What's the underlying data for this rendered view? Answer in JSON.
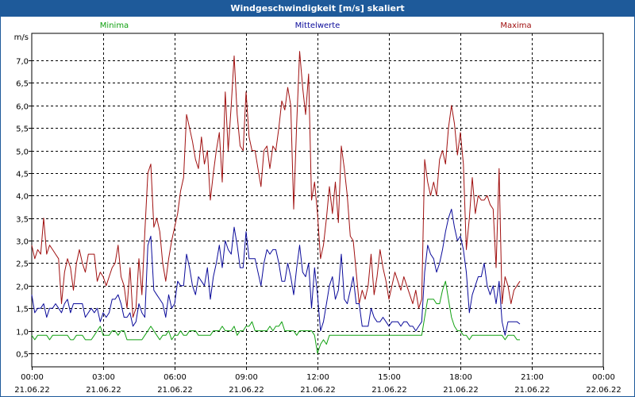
{
  "window": {
    "title": "Windgeschwindigkeit [m/s] skaliert"
  },
  "chart_data": {
    "type": "line",
    "title": "Windgeschwindigkeit [m/s] skaliert",
    "ylabel": "m/s",
    "xlabel": "",
    "ylim": [
      0.2,
      7.6
    ],
    "xlim": [
      0,
      24
    ],
    "grid": true,
    "yticks": [
      "0,5",
      "1,0",
      "1,5",
      "2,0",
      "2,5",
      "3,0",
      "3,5",
      "4,0",
      "4,5",
      "5,0",
      "5,5",
      "6,0",
      "6,5",
      "7,0"
    ],
    "ytick_values": [
      0.5,
      1.0,
      1.5,
      2.0,
      2.5,
      3.0,
      3.5,
      4.0,
      4.5,
      5.0,
      5.5,
      6.0,
      6.5,
      7.0
    ],
    "xticks": [
      {
        "time": "00:00",
        "date": "21.06.22"
      },
      {
        "time": "03:00",
        "date": "21.06.22"
      },
      {
        "time": "06:00",
        "date": "21.06.22"
      },
      {
        "time": "09:00",
        "date": "21.06.22"
      },
      {
        "time": "12:00",
        "date": "21.06.22"
      },
      {
        "time": "15:00",
        "date": "21.06.22"
      },
      {
        "time": "18:00",
        "date": "21.06.22"
      },
      {
        "time": "21:00",
        "date": "21.06.22"
      },
      {
        "time": "00:00",
        "date": "22.06.22"
      }
    ],
    "legend": [
      "Minima",
      "Mittelwerte",
      "Maxima"
    ],
    "x_hours_step": 0.125,
    "series": [
      {
        "name": "Maxima",
        "color": "#a01010",
        "values": [
          2.9,
          2.6,
          2.8,
          2.7,
          3.5,
          2.7,
          2.9,
          2.8,
          2.7,
          2.6,
          1.6,
          2.3,
          2.6,
          2.4,
          1.9,
          2.5,
          2.8,
          2.5,
          2.3,
          2.7,
          2.7,
          2.7,
          2.1,
          2.3,
          2.2,
          2.0,
          2.2,
          2.4,
          2.5,
          2.9,
          2.2,
          2.0,
          1.5,
          2.4,
          1.3,
          1.5,
          2.6,
          1.8,
          3.2,
          4.5,
          4.7,
          3.3,
          3.5,
          3.2,
          2.5,
          2.1,
          2.6,
          3.0,
          3.3,
          3.6,
          4.1,
          4.4,
          5.8,
          5.5,
          5.2,
          4.8,
          4.6,
          5.3,
          4.7,
          5.0,
          3.9,
          4.5,
          5.0,
          5.4,
          4.3,
          6.3,
          5.0,
          6.0,
          7.1,
          5.8,
          5.1,
          5.0,
          6.3,
          5.3,
          5.0,
          5.0,
          4.6,
          4.2,
          5.0,
          5.1,
          4.6,
          5.1,
          5.0,
          5.5,
          6.1,
          5.9,
          6.4,
          6.0,
          3.7,
          5.6,
          7.2,
          6.4,
          5.8,
          6.7,
          3.9,
          4.3,
          3.6,
          2.6,
          2.9,
          3.5,
          4.2,
          3.6,
          4.3,
          3.4,
          5.1,
          4.6,
          4.0,
          3.1,
          3.0,
          2.3,
          1.6,
          1.9,
          1.7,
          2.0,
          2.7,
          1.8,
          2.2,
          2.8,
          2.4,
          2.1,
          1.7,
          2.0,
          2.3,
          2.1,
          1.9,
          2.2,
          2.0,
          1.8,
          1.6,
          1.9,
          1.5,
          1.7,
          4.8,
          4.3,
          4.0,
          4.3,
          4.0,
          4.8,
          5.0,
          4.7,
          5.5,
          6.0,
          5.6,
          4.9,
          5.4,
          4.7,
          2.8,
          3.5,
          4.4,
          3.6,
          4.0,
          3.9,
          3.9,
          4.0,
          3.8,
          3.7,
          2.4,
          4.6,
          1.6,
          2.2,
          2.0,
          1.6,
          1.9,
          2.0,
          2.1
        ]
      },
      {
        "name": "Mittelwerte",
        "color": "#0a0a9a",
        "values": [
          1.8,
          1.4,
          1.5,
          1.5,
          1.6,
          1.3,
          1.5,
          1.5,
          1.6,
          1.5,
          1.4,
          1.6,
          1.7,
          1.4,
          1.6,
          1.6,
          1.6,
          1.6,
          1.3,
          1.4,
          1.5,
          1.4,
          1.5,
          1.2,
          1.4,
          1.3,
          1.4,
          1.7,
          1.7,
          1.8,
          1.6,
          1.3,
          1.3,
          1.4,
          1.1,
          1.2,
          1.6,
          1.4,
          1.3,
          2.9,
          3.1,
          1.9,
          1.8,
          1.7,
          1.6,
          1.3,
          1.8,
          1.5,
          1.6,
          2.1,
          2.0,
          2.0,
          2.7,
          2.4,
          2.0,
          1.8,
          2.2,
          2.1,
          2.0,
          2.4,
          1.7,
          2.2,
          2.5,
          2.9,
          2.4,
          3.0,
          2.8,
          2.7,
          3.3,
          2.9,
          2.4,
          2.4,
          3.2,
          2.6,
          2.6,
          2.6,
          2.3,
          2.0,
          2.5,
          2.8,
          2.7,
          2.8,
          2.8,
          2.5,
          2.1,
          2.1,
          2.5,
          2.2,
          1.8,
          2.4,
          2.9,
          2.3,
          2.2,
          2.5,
          1.5,
          2.4,
          1.8,
          1.0,
          1.2,
          1.6,
          2.0,
          2.2,
          1.7,
          1.9,
          2.7,
          1.7,
          1.6,
          1.9,
          2.2,
          1.6,
          1.6,
          1.1,
          1.1,
          1.1,
          1.5,
          1.3,
          1.2,
          1.2,
          1.3,
          1.2,
          1.1,
          1.2,
          1.2,
          1.2,
          1.1,
          1.2,
          1.2,
          1.1,
          1.1,
          1.0,
          1.1,
          1.2,
          2.3,
          2.9,
          2.7,
          2.6,
          2.3,
          2.5,
          2.8,
          3.2,
          3.5,
          3.7,
          3.3,
          3.0,
          3.1,
          2.8,
          2.3,
          1.4,
          1.8,
          2.0,
          2.2,
          2.2,
          2.5,
          2.0,
          1.8,
          2.0,
          1.6,
          2.1,
          1.2,
          0.9,
          1.2,
          1.2,
          1.2,
          1.2,
          1.15
        ]
      },
      {
        "name": "Minima",
        "color": "#10a010",
        "values": [
          0.9,
          0.8,
          0.9,
          0.9,
          0.9,
          0.9,
          0.8,
          0.9,
          0.9,
          0.9,
          0.9,
          0.9,
          0.9,
          0.8,
          0.8,
          0.9,
          0.9,
          0.9,
          0.8,
          0.8,
          0.8,
          0.9,
          1.0,
          1.1,
          0.9,
          0.9,
          0.9,
          1.0,
          1.0,
          0.9,
          1.0,
          1.0,
          0.8,
          0.8,
          0.8,
          0.8,
          0.8,
          0.8,
          0.9,
          1.0,
          1.1,
          1.0,
          0.9,
          0.8,
          0.9,
          0.9,
          1.0,
          0.8,
          0.9,
          0.9,
          1.0,
          0.9,
          0.9,
          1.0,
          1.0,
          1.0,
          0.9,
          0.9,
          0.9,
          0.9,
          0.9,
          1.0,
          1.0,
          1.0,
          1.1,
          1.0,
          1.0,
          1.0,
          1.1,
          0.9,
          1.0,
          1.0,
          1.1,
          1.1,
          1.2,
          1.0,
          1.0,
          1.0,
          1.0,
          1.0,
          1.1,
          1.0,
          1.1,
          1.1,
          1.2,
          1.0,
          1.0,
          1.0,
          1.0,
          0.9,
          1.0,
          1.0,
          1.0,
          1.0,
          1.0,
          0.9,
          0.5,
          0.7,
          0.8,
          0.7,
          0.9,
          0.9,
          0.9,
          0.9,
          0.9,
          0.9,
          0.9,
          0.9,
          0.9,
          0.9,
          0.9,
          0.9,
          0.9,
          0.9,
          0.9,
          0.9,
          0.9,
          0.9,
          0.9,
          0.9,
          0.9,
          0.9,
          0.9,
          0.9,
          0.9,
          0.9,
          0.9,
          0.9,
          0.9,
          0.9,
          0.9,
          0.9,
          1.3,
          1.7,
          1.7,
          1.7,
          1.6,
          1.6,
          1.9,
          2.1,
          1.7,
          1.3,
          1.1,
          1.0,
          1.0,
          0.9,
          0.9,
          0.8,
          0.9,
          0.9,
          0.9,
          0.9,
          0.9,
          0.9,
          0.9,
          0.9,
          0.9,
          0.9,
          0.9,
          0.8,
          0.9,
          0.9,
          0.9,
          0.8,
          0.8
        ]
      }
    ]
  }
}
